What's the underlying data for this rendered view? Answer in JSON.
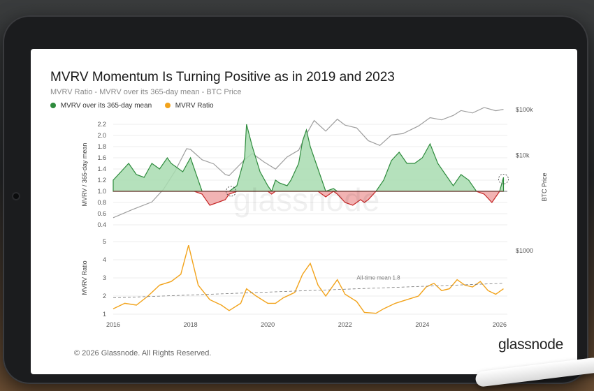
{
  "title": "MVRV Momentum Is Turning Positive as in 2019 and 2023",
  "subtitle": "MVRV Ratio - MVRV over its 365-day mean - BTC Price",
  "brand": "glassnode",
  "copyright": "© 2026 Glassnode. All Rights Reserved.",
  "colors": {
    "positive": "#2e8b3d",
    "positive_fill": "#a8dcb0",
    "negative": "#c62828",
    "negative_fill": "#f0a6a6",
    "mvrv": "#f2a31b",
    "price": "#9e9e9e"
  },
  "chart_data": [
    {
      "type": "area",
      "title": "",
      "ylabel": "MVRV / 365-day mean",
      "y2label": "BTC Price",
      "ylim": [
        0.4,
        2.2
      ],
      "yticks": [
        0.4,
        0.6,
        0.8,
        1.0,
        1.2,
        1.4,
        1.6,
        1.8,
        2.0,
        2.2
      ],
      "baseline": 1.0,
      "y2ticks": [
        {
          "label": "$10k",
          "value": 10000
        },
        {
          "label": "$100k",
          "value": 100000
        }
      ],
      "legend": [
        {
          "name": "MVRV over its 365-day mean",
          "color": "#2e8b3d"
        }
      ],
      "series": [
        {
          "name": "MVRV over its 365-day mean",
          "x": [
            2016.0,
            2016.2,
            2016.4,
            2016.5,
            2016.6,
            2016.8,
            2017.0,
            2017.2,
            2017.4,
            2017.5,
            2017.6,
            2017.8,
            2018.0,
            2018.1,
            2018.3,
            2018.5,
            2018.7,
            2018.9,
            2019.0,
            2019.2,
            2019.4,
            2019.45,
            2019.6,
            2019.8,
            2020.0,
            2020.1,
            2020.2,
            2020.3,
            2020.5,
            2020.6,
            2020.8,
            2020.9,
            2021.0,
            2021.1,
            2021.3,
            2021.5,
            2021.7,
            2021.8,
            2022.0,
            2022.2,
            2022.4,
            2022.5,
            2022.6,
            2022.8,
            2023.0,
            2023.2,
            2023.4,
            2023.6,
            2023.8,
            2024.0,
            2024.2,
            2024.4,
            2024.6,
            2024.8,
            2025.0,
            2025.2,
            2025.4,
            2025.6,
            2025.8,
            2026.0,
            2026.1
          ],
          "values": [
            1.2,
            1.35,
            1.5,
            1.4,
            1.3,
            1.25,
            1.5,
            1.4,
            1.6,
            1.5,
            1.45,
            1.35,
            1.6,
            1.4,
            0.95,
            0.75,
            0.8,
            0.85,
            0.95,
            1.1,
            1.6,
            2.2,
            1.8,
            1.35,
            1.1,
            0.95,
            1.2,
            1.15,
            1.1,
            1.2,
            1.5,
            1.9,
            2.1,
            1.8,
            1.4,
            0.9,
            1.05,
            0.95,
            0.8,
            0.75,
            0.85,
            0.8,
            0.85,
            1.0,
            1.2,
            1.55,
            1.7,
            1.5,
            1.5,
            1.6,
            1.85,
            1.5,
            1.3,
            1.1,
            1.3,
            1.2,
            1.0,
            0.95,
            0.8,
            1.0,
            1.25
          ]
        },
        {
          "name": "BTC Price",
          "x": [
            2016.0,
            2016.5,
            2017.0,
            2017.3,
            2017.6,
            2017.9,
            2018.0,
            2018.3,
            2018.6,
            2018.9,
            2019.0,
            2019.4,
            2019.6,
            2019.9,
            2020.2,
            2020.5,
            2020.8,
            2021.0,
            2021.2,
            2021.5,
            2021.8,
            2022.0,
            2022.3,
            2022.6,
            2022.9,
            2023.2,
            2023.5,
            2023.9,
            2024.2,
            2024.5,
            2024.8,
            2025.0,
            2025.3,
            2025.6,
            2025.9,
            2026.1
          ],
          "values": [
            430,
            650,
            950,
            1800,
            4500,
            14000,
            13500,
            8000,
            6500,
            3800,
            3600,
            8000,
            11000,
            7200,
            5000,
            9200,
            13000,
            29000,
            58000,
            34000,
            62000,
            46000,
            40000,
            21000,
            16500,
            28000,
            30000,
            44000,
            67000,
            60000,
            75000,
            96000,
            85000,
            112000,
            95000,
            102000
          ]
        }
      ]
    },
    {
      "type": "line",
      "title": "",
      "ylabel": "MVRV Ratio",
      "ylim": [
        1,
        5
      ],
      "yticks": [
        1,
        2,
        3,
        4,
        5
      ],
      "xticks": [
        2016,
        2018,
        2020,
        2022,
        2024,
        2026
      ],
      "annotation": "All-time mean 1.8",
      "y2ticks": [
        {
          "label": "$1000",
          "value": 1000
        }
      ],
      "legend": [
        {
          "name": "MVRV Ratio",
          "color": "#f2a31b"
        }
      ],
      "series": [
        {
          "name": "MVRV Ratio",
          "x": [
            2016.0,
            2016.3,
            2016.6,
            2016.9,
            2017.2,
            2017.5,
            2017.75,
            2017.95,
            2018.2,
            2018.5,
            2018.8,
            2019.0,
            2019.3,
            2019.45,
            2019.7,
            2020.0,
            2020.2,
            2020.4,
            2020.7,
            2020.9,
            2021.1,
            2021.3,
            2021.5,
            2021.8,
            2022.0,
            2022.3,
            2022.5,
            2022.8,
            2023.0,
            2023.3,
            2023.6,
            2023.9,
            2024.1,
            2024.3,
            2024.5,
            2024.7,
            2024.9,
            2025.1,
            2025.3,
            2025.5,
            2025.7,
            2025.9,
            2026.1
          ],
          "values": [
            1.3,
            1.6,
            1.5,
            2.0,
            2.6,
            2.8,
            3.2,
            4.8,
            2.6,
            1.8,
            1.5,
            1.2,
            1.6,
            2.4,
            2.0,
            1.6,
            1.6,
            1.9,
            2.2,
            3.2,
            3.8,
            2.6,
            2.0,
            2.9,
            2.1,
            1.7,
            1.1,
            1.05,
            1.3,
            1.6,
            1.8,
            2.0,
            2.5,
            2.7,
            2.3,
            2.4,
            2.9,
            2.6,
            2.5,
            2.8,
            2.3,
            2.1,
            2.4
          ]
        }
      ]
    }
  ]
}
